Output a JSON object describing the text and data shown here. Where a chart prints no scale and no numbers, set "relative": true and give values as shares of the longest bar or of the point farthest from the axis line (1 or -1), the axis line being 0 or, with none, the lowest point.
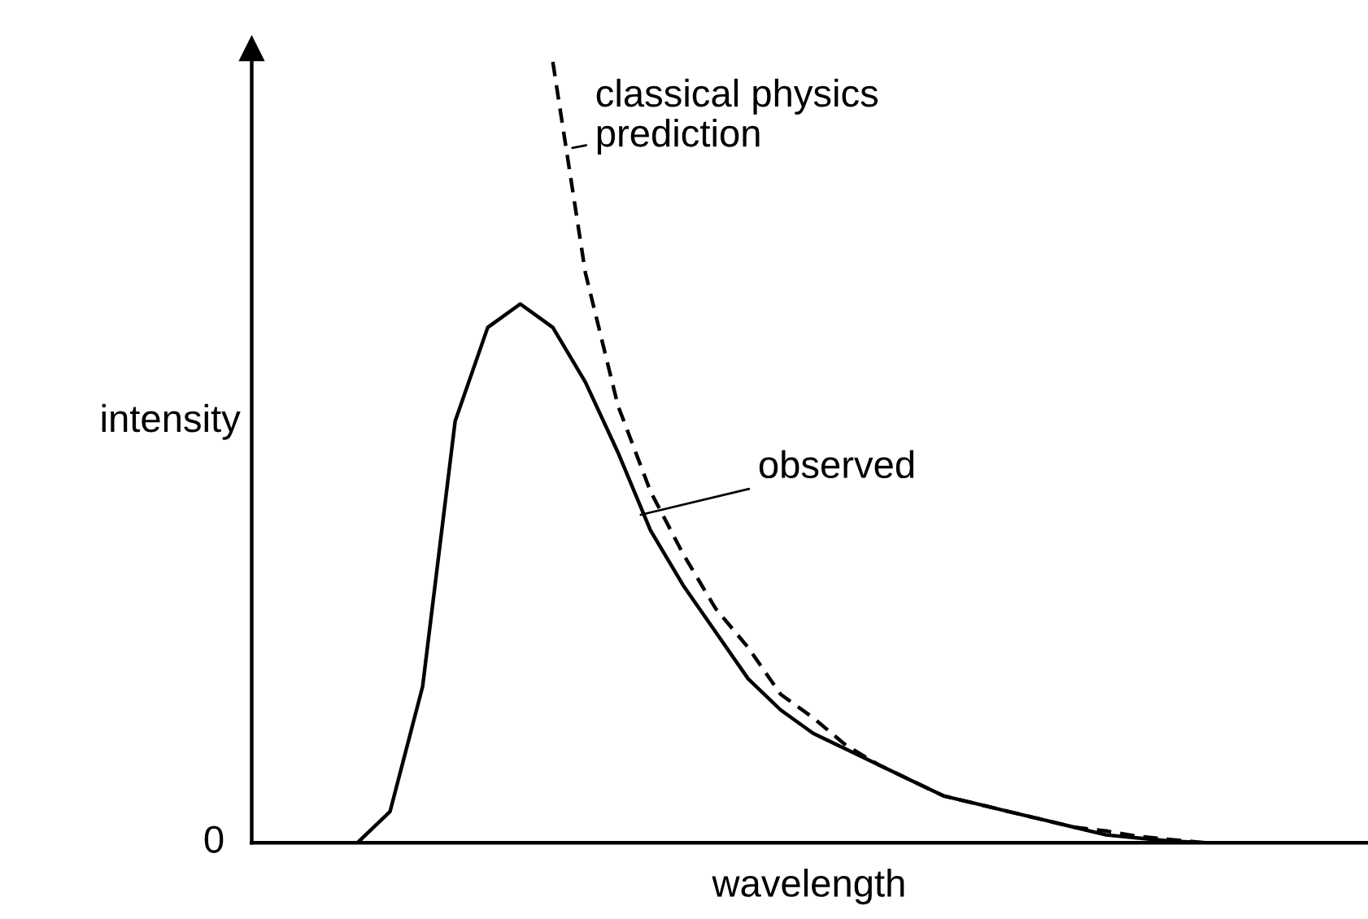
{
  "chart_data": {
    "type": "line",
    "relative": true,
    "xlabel": "wavelength",
    "ylabel": "intensity",
    "categories": [
      null,
      null,
      null,
      null,
      null,
      null,
      null,
      null,
      null,
      null,
      null,
      null,
      null,
      null,
      null,
      null,
      null,
      null,
      null,
      null,
      null,
      null,
      null,
      null,
      null,
      null,
      null,
      null,
      null,
      null,
      null,
      null,
      null,
      null,
      null
    ],
    "series": [
      {
        "color": "#000000",
        "line_style": "solid",
        "values": [
          0,
          0,
          0,
          0,
          0.04,
          0.2,
          0.54,
          0.66,
          0.69,
          0.66,
          0.59,
          0.5,
          0.4,
          0.33,
          0.27,
          0.21,
          0.17,
          0.14,
          0.12,
          0.1,
          0.08,
          0.06,
          0.05,
          0.04,
          0.03,
          0.02,
          0.01,
          0.006,
          0.002,
          0,
          null,
          null,
          null,
          null,
          null
        ]
      },
      {
        "color": "#000000",
        "line_style": "dashed",
        "values": [
          null,
          null,
          null,
          null,
          null,
          null,
          null,
          null,
          null,
          1,
          0.73,
          0.56,
          0.45,
          0.37,
          0.3,
          0.25,
          0.19,
          0.16,
          0.125,
          0.1,
          0.08,
          0.06,
          0.05,
          0.04,
          0.03,
          0.02,
          0.015,
          0.008,
          0.004,
          0,
          null,
          null,
          null,
          null,
          null
        ]
      }
    ],
    "annotations": [
      "observed",
      "classical physics\nprediction",
      "0"
    ],
    "grid": false,
    "legend": false,
    "marker": "none"
  }
}
